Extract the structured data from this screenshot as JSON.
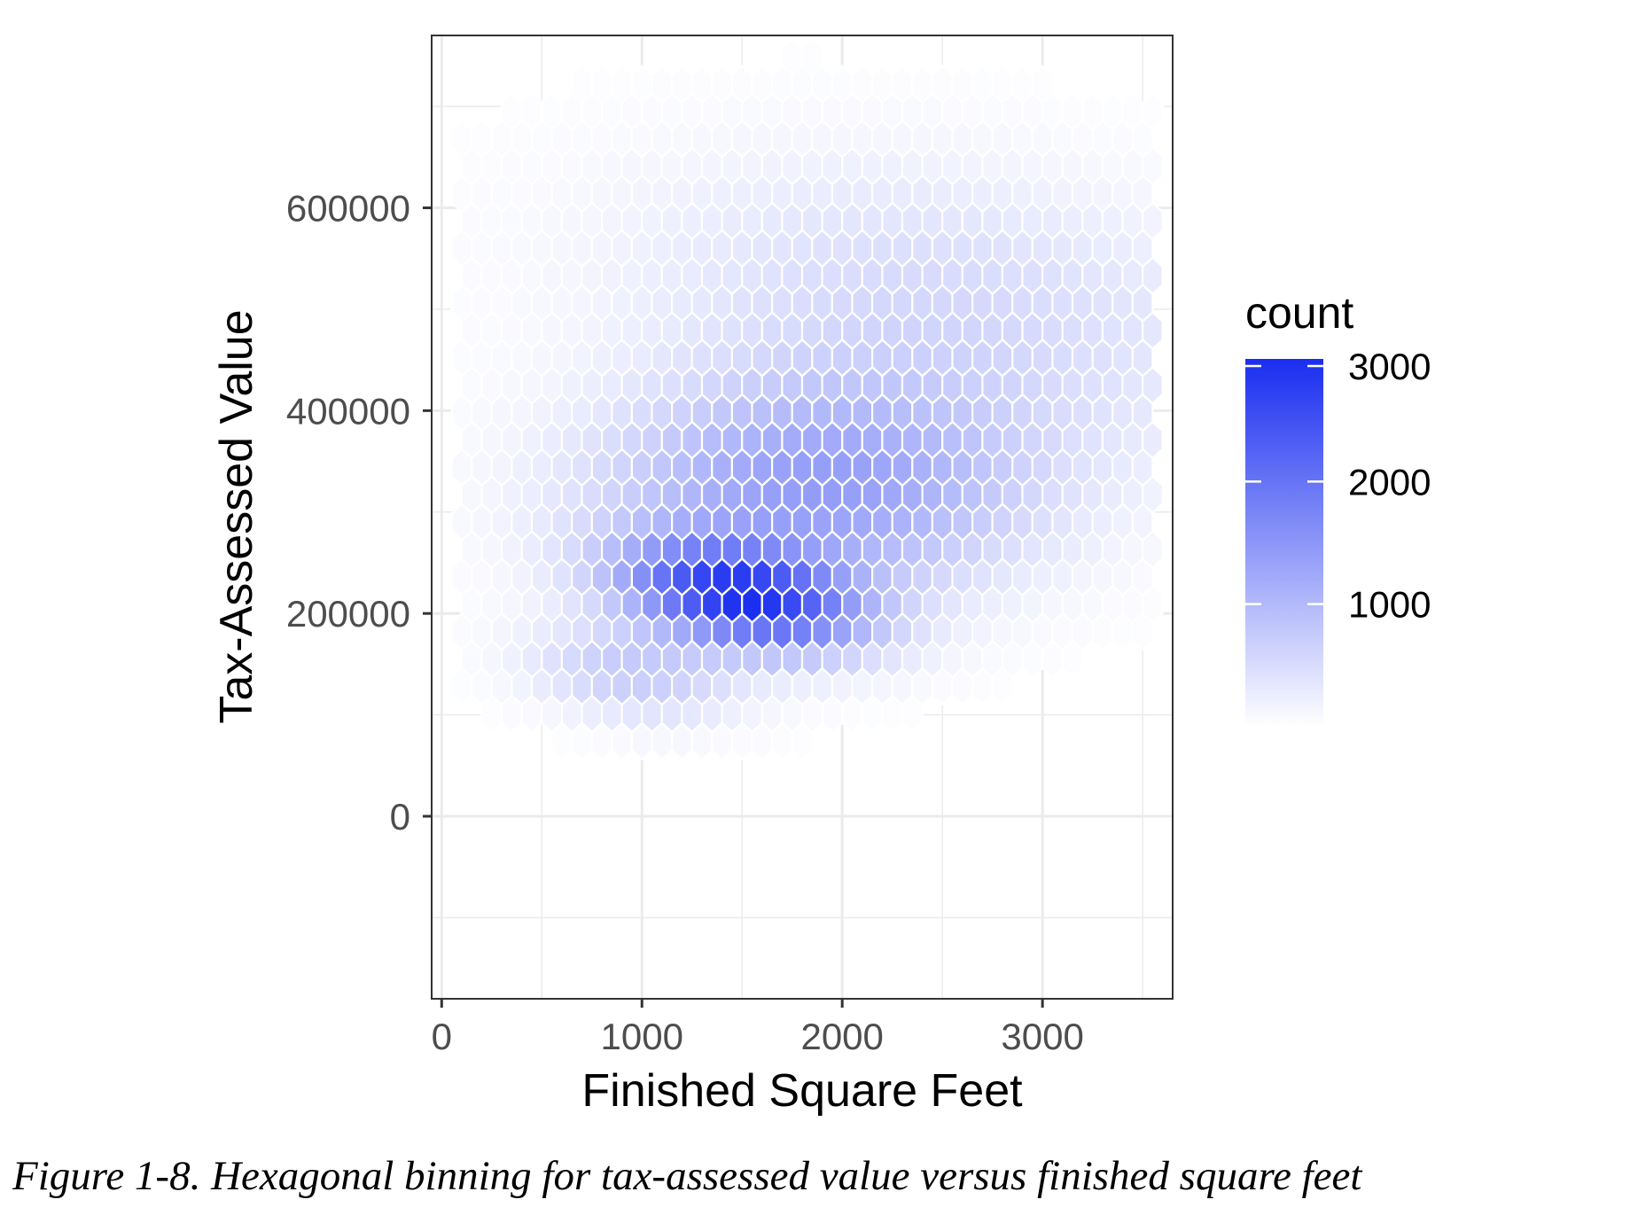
{
  "caption": "Figure 1-8. Hexagonal binning for tax-assessed value versus finished square feet",
  "chart_data": {
    "type": "heatmap",
    "subtype": "hexbin",
    "title": "",
    "xlabel": "Finished Square Feet",
    "ylabel": "Tax-Assessed Value",
    "xlim": [
      -50,
      3650
    ],
    "ylim": [
      -180000,
      770000
    ],
    "x_ticks": [
      0,
      1000,
      2000,
      3000
    ],
    "x_tick_labels": [
      "0",
      "1000",
      "2000",
      "3000"
    ],
    "y_ticks": [
      0,
      200000,
      400000,
      600000
    ],
    "y_tick_labels": [
      "0",
      "200000",
      "400000",
      "600000"
    ],
    "grid": true,
    "legend": {
      "title": "count",
      "position": "right",
      "ticks": [
        1000,
        2000,
        3000
      ],
      "tick_labels": [
        "1000",
        "2000",
        "3000"
      ],
      "min": 0,
      "max": 3000,
      "low_color": "#ffffff",
      "high_color": "#1a2ef0"
    },
    "bin_width_x": 100,
    "bin_width_y": 27000,
    "density_model": {
      "peak_x": 1500,
      "peak_y": 215000,
      "peak_count": 3000,
      "ridge_slope": 140,
      "components": [
        {
          "x": 1500,
          "y": 215000,
          "sd_along": 300,
          "sd_across": 45000,
          "count": 2600
        },
        {
          "x": 1850,
          "y": 320000,
          "sd_along": 750,
          "sd_across": 75000,
          "count": 1350
        },
        {
          "x": 2500,
          "y": 500000,
          "sd_along": 900,
          "sd_across": 120000,
          "count": 520
        },
        {
          "x": 950,
          "y": 140000,
          "sd_along": 300,
          "sd_across": 40000,
          "count": 700
        }
      ],
      "x_range": [
        100,
        3550
      ],
      "y_range": [
        20000,
        765000
      ]
    }
  }
}
